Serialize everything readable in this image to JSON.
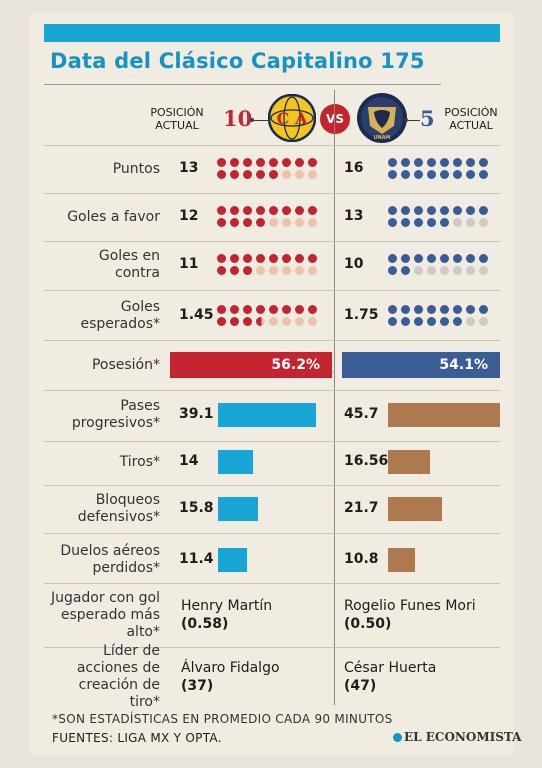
{
  "title": "Data del Clásico Capitalino 175",
  "header": {
    "pos_label_left": "POSICIÓN ACTUAL",
    "pos_label_right": "POSICIÓN ACTUAL",
    "rank_left": "10",
    "rank_right": "5",
    "vs": "VS",
    "logo_left": "C A",
    "logo_right": "UNAM"
  },
  "colors": {
    "america_red": "#c4242f",
    "america_light": "#ecc4ae",
    "pumas_blue": "#3a5d97",
    "pumas_light": "#cfcbc3",
    "america_bar": "#17a6d6",
    "pumas_bar": "#ad7a4f",
    "title": "#1592c6"
  },
  "chart_data": {
    "type": "table",
    "teams": [
      "América",
      "Pumas"
    ],
    "dot_rows": [
      {
        "label": "Puntos",
        "america": 13,
        "pumas": 16
      },
      {
        "label": "Goles a favor",
        "america": 12,
        "pumas": 13
      },
      {
        "label": "Goles en contra",
        "america": 11,
        "pumas": 10
      },
      {
        "label": "Goles esperados*",
        "america": 1.45,
        "pumas": 1.75
      }
    ],
    "possession": {
      "label": "Posesión*",
      "america": 56.2,
      "pumas": 54.1,
      "america_text": "56.2%",
      "pumas_text": "54.1%"
    },
    "bar_rows": [
      {
        "label": "Pases progresivos*",
        "america": 39.1,
        "pumas": 45.7
      },
      {
        "label": "Tiros*",
        "america": 14,
        "pumas": 16.56
      },
      {
        "label": "Bloqueos defensivos*",
        "america": 15.8,
        "pumas": 21.7
      },
      {
        "label": "Duelos aéreos perdidos*",
        "america": 11.4,
        "pumas": 10.8
      }
    ],
    "text_rows": [
      {
        "label": "Jugador con gol esperado más alto*",
        "america_name": "Henry Martín",
        "america_val": "(0.58)",
        "pumas_name": "Rogelio Funes Mori",
        "pumas_val": "(0.50)"
      },
      {
        "label": "Líder de acciones de creación de tiro*",
        "america_name": "Álvaro Fidalgo",
        "america_val": "(37)",
        "pumas_name": "César Huerta",
        "pumas_val": "(47)"
      }
    ]
  },
  "footnote": "*SON ESTADÍSTICAS EN PROMEDIO CADA 90 MINUTOS",
  "sources": "FUENTES: LIGA MX Y OPTA.",
  "brand": "EL ECONOMISTA"
}
